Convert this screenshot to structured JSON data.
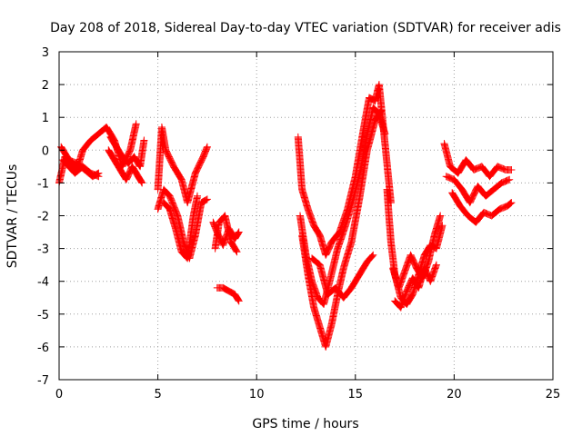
{
  "chart_data": {
    "type": "scatter",
    "title": "Day 208 of 2018, Sidereal Day-to-day VTEC variation (SDTVAR) for receiver adis",
    "xlabel": "GPS time / hours",
    "ylabel": "SDTVAR / TECUs",
    "xlim": [
      0,
      25
    ],
    "ylim": [
      -7,
      3
    ],
    "xticks": [
      "0",
      "5",
      "10",
      "15",
      "20",
      "25"
    ],
    "yticks": [
      "3",
      "2",
      "1",
      "0",
      "-1",
      "-2",
      "-3",
      "-4",
      "-5",
      "-6",
      "-7"
    ],
    "grid": true,
    "marker": "plus",
    "color": "#ff0000",
    "series": [
      {
        "name": "SDTVAR",
        "tracks": [
          [
            [
              0.0,
              -1.0
            ],
            [
              0.3,
              -0.2
            ],
            [
              0.6,
              -0.4
            ],
            [
              0.9,
              -0.6
            ],
            [
              1.2,
              0.0
            ],
            [
              1.6,
              0.3
            ],
            [
              2.0,
              0.5
            ],
            [
              2.4,
              0.7
            ],
            [
              2.8,
              0.3
            ],
            [
              3.2,
              -0.5
            ],
            [
              3.6,
              0.0
            ],
            [
              3.9,
              0.8
            ]
          ],
          [
            [
              0.1,
              0.1
            ],
            [
              0.5,
              -0.3
            ],
            [
              0.9,
              -0.4
            ],
            [
              1.3,
              -0.6
            ],
            [
              1.7,
              -0.8
            ],
            [
              2.0,
              -0.7
            ]
          ],
          [
            [
              0.2,
              -0.3
            ],
            [
              0.5,
              -0.5
            ],
            [
              0.8,
              -0.7
            ],
            [
              1.2,
              -0.5
            ],
            [
              1.6,
              -0.7
            ],
            [
              2.0,
              -0.8
            ]
          ],
          [
            [
              2.5,
              0.0
            ],
            [
              2.8,
              -0.3
            ],
            [
              3.1,
              -0.6
            ],
            [
              3.4,
              -0.9
            ],
            [
              3.7,
              -0.5
            ],
            [
              4.0,
              -0.8
            ],
            [
              4.2,
              -1.0
            ]
          ],
          [
            [
              2.6,
              0.4
            ],
            [
              2.9,
              0.1
            ],
            [
              3.2,
              -0.2
            ],
            [
              3.5,
              -0.4
            ],
            [
              3.8,
              -0.2
            ],
            [
              4.1,
              -0.5
            ],
            [
              4.3,
              0.3
            ]
          ],
          [
            [
              5.0,
              -1.2
            ],
            [
              5.2,
              0.7
            ],
            [
              5.4,
              0.0
            ],
            [
              5.8,
              -0.5
            ],
            [
              6.2,
              -0.9
            ],
            [
              6.5,
              -1.6
            ],
            [
              6.9,
              -0.7
            ],
            [
              7.3,
              -0.2
            ],
            [
              7.5,
              0.1
            ]
          ],
          [
            [
              5.0,
              -1.8
            ],
            [
              5.3,
              -1.2
            ],
            [
              5.6,
              -1.4
            ],
            [
              6.0,
              -2.0
            ],
            [
              6.3,
              -2.8
            ],
            [
              6.6,
              -3.3
            ],
            [
              6.9,
              -2.6
            ],
            [
              7.2,
              -1.6
            ],
            [
              7.5,
              -1.5
            ]
          ],
          [
            [
              5.3,
              -1.6
            ],
            [
              5.6,
              -1.8
            ],
            [
              5.9,
              -2.4
            ],
            [
              6.2,
              -3.1
            ],
            [
              6.5,
              -3.3
            ],
            [
              6.8,
              -2.0
            ],
            [
              7.0,
              -1.4
            ]
          ],
          [
            [
              7.8,
              -2.2
            ],
            [
              8.0,
              -2.5
            ],
            [
              8.3,
              -2.9
            ],
            [
              8.6,
              -2.4
            ],
            [
              8.9,
              -2.7
            ],
            [
              9.1,
              -2.5
            ]
          ],
          [
            [
              7.9,
              -3.0
            ],
            [
              8.1,
              -2.2
            ],
            [
              8.4,
              -2.0
            ],
            [
              8.7,
              -2.8
            ],
            [
              9.0,
              -3.1
            ]
          ],
          [
            [
              8.0,
              -4.2
            ],
            [
              8.3,
              -4.2
            ],
            [
              8.6,
              -4.3
            ],
            [
              8.9,
              -4.4
            ],
            [
              9.1,
              -4.6
            ]
          ],
          [
            [
              12.1,
              0.4
            ],
            [
              12.3,
              -1.2
            ],
            [
              12.6,
              -1.8
            ],
            [
              12.9,
              -2.3
            ],
            [
              13.2,
              -2.6
            ],
            [
              13.5,
              -3.2
            ],
            [
              13.8,
              -2.8
            ],
            [
              14.2,
              -2.5
            ],
            [
              14.6,
              -1.8
            ],
            [
              15.0,
              -0.8
            ],
            [
              15.4,
              0.6
            ],
            [
              15.7,
              1.6
            ],
            [
              16.0,
              1.5
            ],
            [
              16.2,
              2.0
            ],
            [
              16.4,
              0.8
            ],
            [
              16.6,
              -0.4
            ],
            [
              16.8,
              -1.6
            ]
          ],
          [
            [
              12.2,
              -2.0
            ],
            [
              12.5,
              -3.2
            ],
            [
              12.8,
              -4.0
            ],
            [
              13.1,
              -4.5
            ],
            [
              13.4,
              -4.7
            ],
            [
              13.7,
              -4.0
            ],
            [
              14.1,
              -3.0
            ],
            [
              14.5,
              -2.3
            ],
            [
              14.9,
              -1.5
            ],
            [
              15.3,
              -0.5
            ],
            [
              15.6,
              0.5
            ],
            [
              15.9,
              1.3
            ],
            [
              16.2,
              1.1
            ],
            [
              16.5,
              0.5
            ]
          ],
          [
            [
              12.3,
              -2.6
            ],
            [
              12.6,
              -3.8
            ],
            [
              12.9,
              -4.8
            ],
            [
              13.2,
              -5.4
            ],
            [
              13.5,
              -6.0
            ],
            [
              13.8,
              -5.3
            ],
            [
              14.1,
              -4.4
            ],
            [
              14.4,
              -3.6
            ],
            [
              14.8,
              -2.8
            ],
            [
              15.2,
              -1.5
            ],
            [
              15.6,
              0.0
            ],
            [
              16.0,
              0.9
            ],
            [
              16.3,
              1.2
            ]
          ],
          [
            [
              12.8,
              -3.3
            ],
            [
              13.2,
              -3.5
            ],
            [
              13.6,
              -4.4
            ],
            [
              14.0,
              -4.2
            ],
            [
              14.4,
              -4.5
            ],
            [
              14.8,
              -4.2
            ],
            [
              15.2,
              -3.8
            ],
            [
              15.6,
              -3.4
            ],
            [
              15.9,
              -3.2
            ]
          ],
          [
            [
              16.6,
              -1.2
            ],
            [
              16.8,
              -2.8
            ],
            [
              17.0,
              -3.8
            ],
            [
              17.3,
              -4.5
            ],
            [
              17.6,
              -4.7
            ],
            [
              17.9,
              -4.4
            ],
            [
              18.2,
              -3.8
            ],
            [
              18.5,
              -3.2
            ],
            [
              18.8,
              -2.9
            ],
            [
              19.1,
              -3.0
            ],
            [
              19.4,
              -2.3
            ]
          ],
          [
            [
              16.9,
              -3.6
            ],
            [
              17.2,
              -4.2
            ],
            [
              17.5,
              -3.7
            ],
            [
              17.8,
              -3.2
            ],
            [
              18.1,
              -3.6
            ],
            [
              18.4,
              -3.9
            ],
            [
              18.7,
              -3.4
            ],
            [
              19.0,
              -2.6
            ],
            [
              19.3,
              -2.0
            ]
          ],
          [
            [
              17.0,
              -4.6
            ],
            [
              17.3,
              -4.8
            ],
            [
              17.6,
              -4.3
            ],
            [
              17.9,
              -3.9
            ],
            [
              18.2,
              -4.2
            ],
            [
              18.5,
              -3.6
            ],
            [
              18.8,
              -4.0
            ],
            [
              19.1,
              -3.5
            ]
          ],
          [
            [
              19.5,
              0.2
            ],
            [
              19.8,
              -0.5
            ],
            [
              20.2,
              -0.7
            ],
            [
              20.6,
              -0.3
            ],
            [
              21.0,
              -0.6
            ],
            [
              21.4,
              -0.5
            ],
            [
              21.8,
              -0.8
            ],
            [
              22.2,
              -0.5
            ],
            [
              22.6,
              -0.6
            ],
            [
              22.9,
              -0.6
            ]
          ],
          [
            [
              19.6,
              -0.8
            ],
            [
              20.0,
              -0.9
            ],
            [
              20.4,
              -1.2
            ],
            [
              20.8,
              -1.6
            ],
            [
              21.2,
              -1.1
            ],
            [
              21.6,
              -1.4
            ],
            [
              22.0,
              -1.2
            ],
            [
              22.4,
              -1.0
            ],
            [
              22.8,
              -0.9
            ]
          ],
          [
            [
              19.9,
              -1.3
            ],
            [
              20.3,
              -1.7
            ],
            [
              20.7,
              -2.0
            ],
            [
              21.1,
              -2.2
            ],
            [
              21.5,
              -1.9
            ],
            [
              21.9,
              -2.0
            ],
            [
              22.3,
              -1.8
            ],
            [
              22.7,
              -1.7
            ],
            [
              22.9,
              -1.6
            ]
          ]
        ]
      }
    ]
  }
}
